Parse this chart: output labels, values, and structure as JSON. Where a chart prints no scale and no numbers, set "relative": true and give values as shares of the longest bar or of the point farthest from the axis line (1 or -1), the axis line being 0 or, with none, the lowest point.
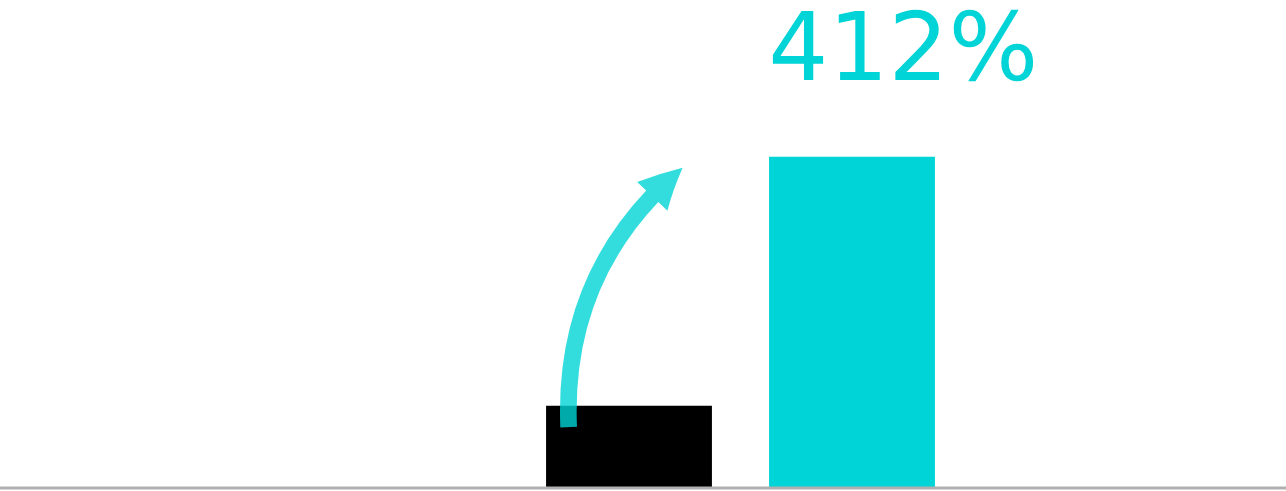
{
  "chart_data": {
    "type": "bar",
    "relative": true,
    "categories": [
      null,
      null
    ],
    "colors": [
      "#000000",
      "#00d4d6"
    ],
    "values": [
      0.25,
      1
    ],
    "annotations": [
      "412%"
    ]
  }
}
